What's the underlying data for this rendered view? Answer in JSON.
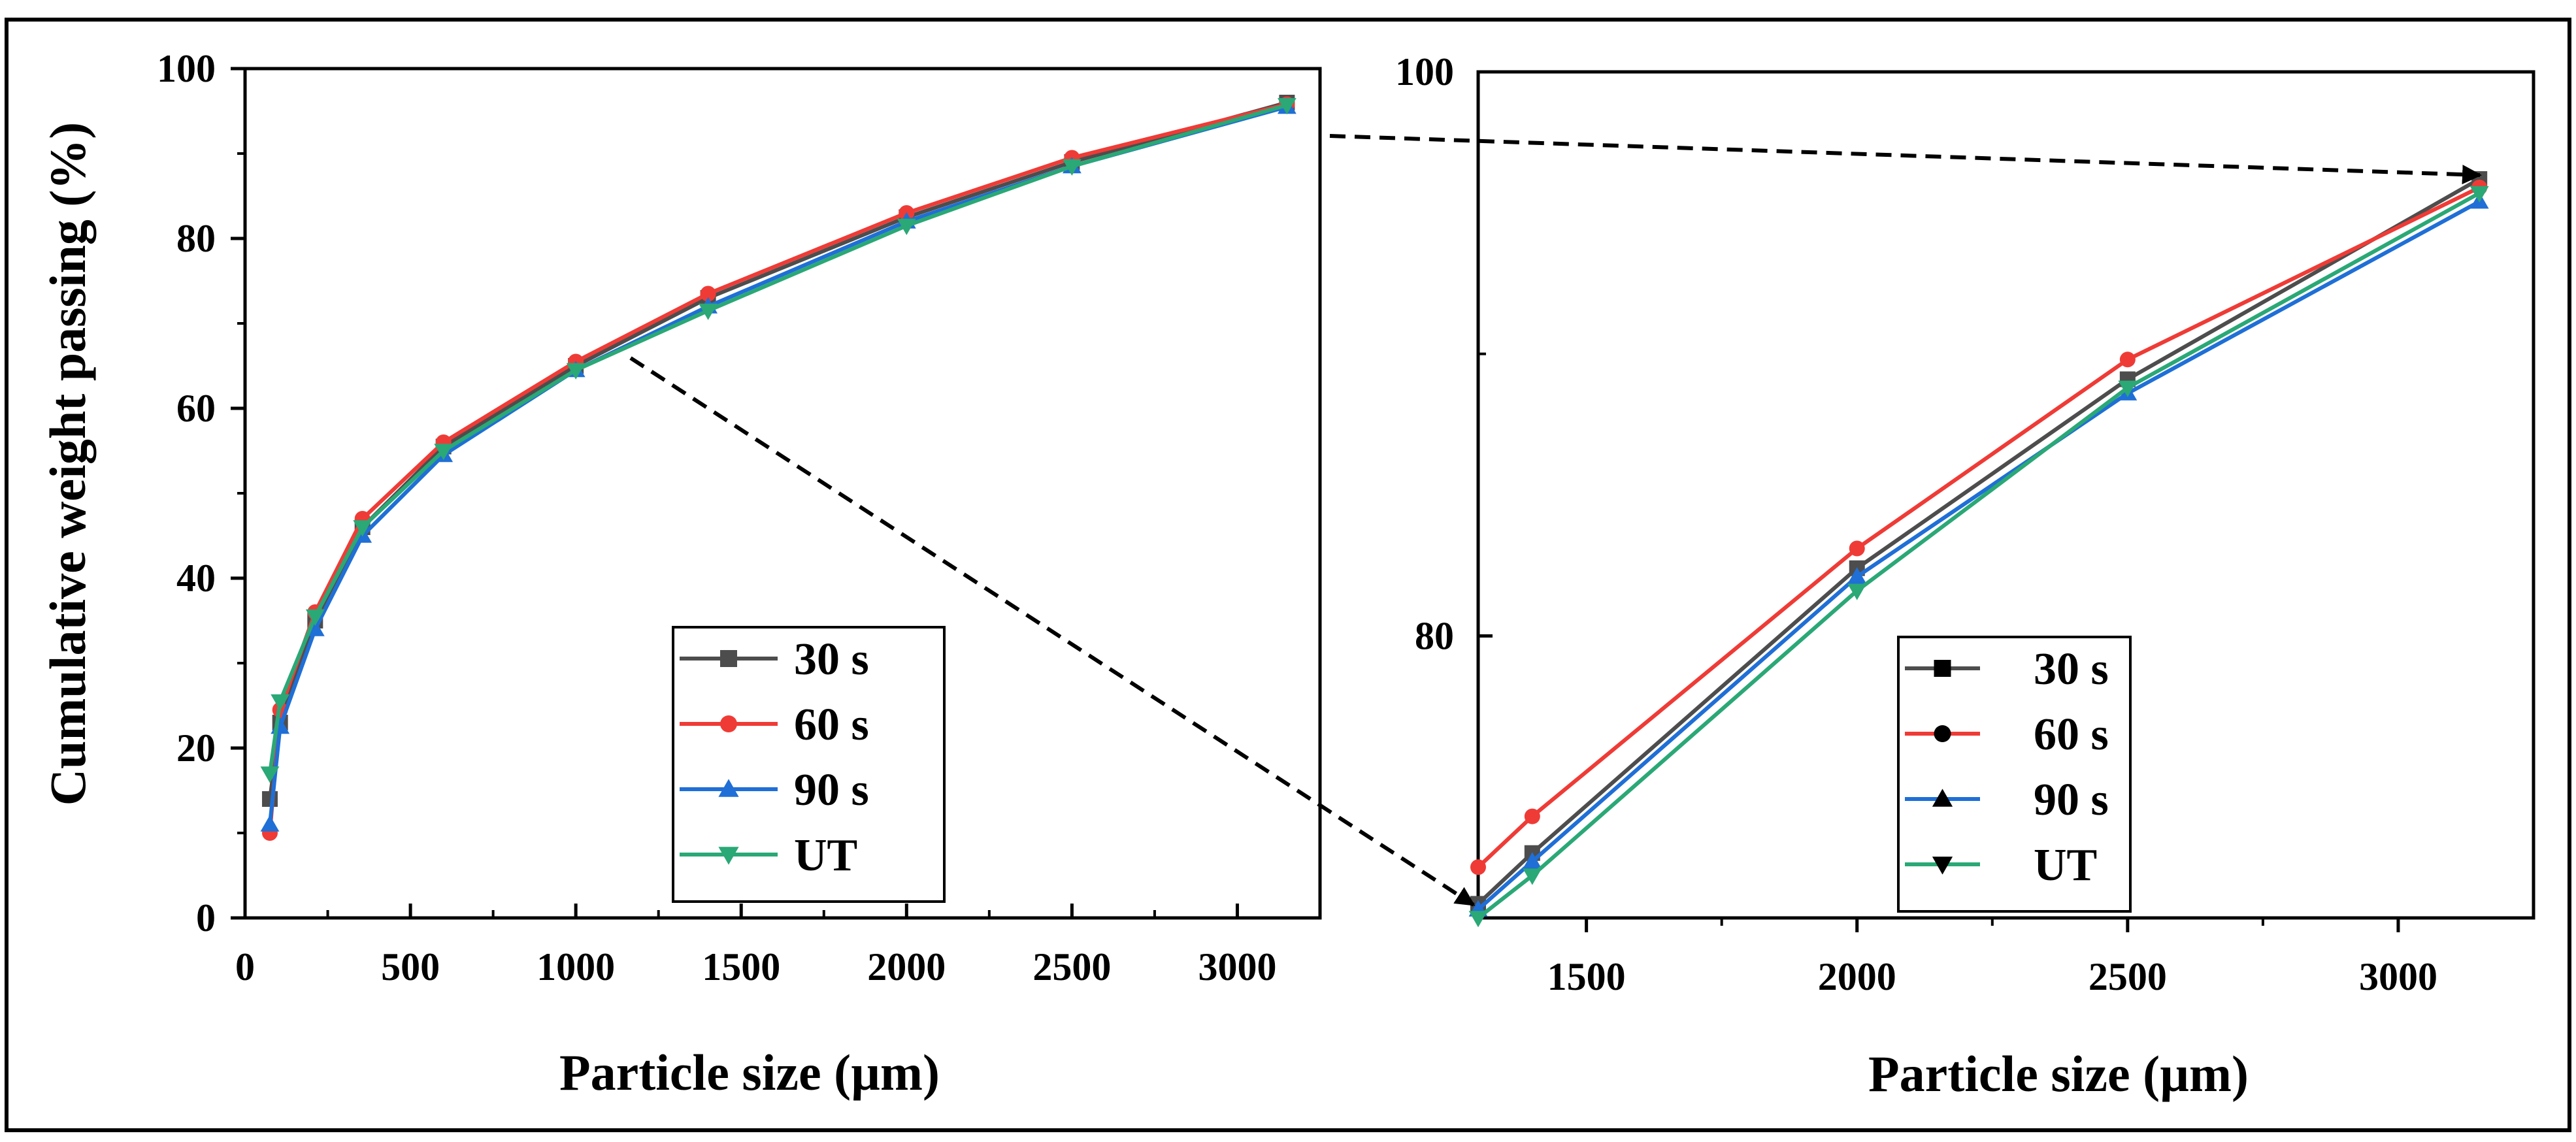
{
  "colors": {
    "30 s": "#4d4d4d",
    "60 s": "#ef3b36",
    "90 s": "#1f6fd6",
    "UT": "#2aa876"
  },
  "chart_data": [
    {
      "type": "line",
      "title": "",
      "xlabel": "Particle size (µm)",
      "ylabel": "Cumulative weight passing (%)",
      "xlim": [
        0,
        3250
      ],
      "ylim": [
        0,
        100
      ],
      "xticks": [
        0,
        500,
        1000,
        1500,
        2000,
        2500,
        3000
      ],
      "yticks": [
        0,
        20,
        40,
        60,
        80,
        100
      ],
      "legend_position": "bottom-center",
      "series": [
        {
          "name": "30 s",
          "marker": "square",
          "x": [
            75,
            106,
            212,
            355,
            600,
            1000,
            1400,
            2000,
            2500,
            3150
          ],
          "y": [
            14,
            23,
            35,
            46,
            55.5,
            65,
            73,
            82.5,
            89,
            96
          ]
        },
        {
          "name": "60 s",
          "marker": "circle",
          "x": [
            75,
            106,
            212,
            355,
            600,
            1000,
            1400,
            2000,
            2500,
            3150
          ],
          "y": [
            10,
            24.5,
            36,
            47,
            56,
            65.5,
            73.5,
            83,
            89.5,
            95.8
          ]
        },
        {
          "name": "90 s",
          "marker": "triangle-up",
          "x": [
            75,
            106,
            212,
            355,
            600,
            1000,
            1400,
            2000,
            2500,
            3150
          ],
          "y": [
            11,
            22.5,
            34,
            45,
            54.5,
            64.5,
            72,
            82,
            88.5,
            95.5
          ]
        },
        {
          "name": "UT",
          "marker": "triangle-down",
          "x": [
            75,
            106,
            212,
            355,
            600,
            1000,
            1400,
            2000,
            2500,
            3150
          ],
          "y": [
            17,
            25.5,
            35.5,
            46,
            55,
            64.5,
            71.5,
            81.5,
            88.5,
            95.7
          ]
        }
      ]
    },
    {
      "type": "line",
      "title": "",
      "xlabel": "Particle size (µm)",
      "ylabel": "",
      "xlim": [
        1300,
        3250
      ],
      "ylim": [
        70,
        100
      ],
      "xticks": [
        1500,
        2000,
        2500,
        3000
      ],
      "yticks": [
        80,
        100
      ],
      "legend_position": "bottom-right",
      "series": [
        {
          "name": "30 s",
          "marker": "square",
          "x": [
            1300,
            1400,
            2000,
            2500,
            3150
          ],
          "y": [
            70.5,
            72.3,
            82.4,
            89.1,
            96.2
          ]
        },
        {
          "name": "60 s",
          "marker": "circle",
          "x": [
            1300,
            1400,
            2000,
            2500,
            3150
          ],
          "y": [
            71.8,
            73.6,
            83.1,
            89.8,
            95.9
          ]
        },
        {
          "name": "90 s",
          "marker": "triangle-up",
          "x": [
            1300,
            1400,
            2000,
            2500,
            3150
          ],
          "y": [
            70.3,
            72.0,
            82.1,
            88.6,
            95.4
          ]
        },
        {
          "name": "UT",
          "marker": "triangle-down",
          "x": [
            1300,
            1400,
            2000,
            2500,
            3150
          ],
          "y": [
            70.0,
            71.5,
            81.6,
            88.8,
            95.7
          ]
        }
      ]
    }
  ]
}
